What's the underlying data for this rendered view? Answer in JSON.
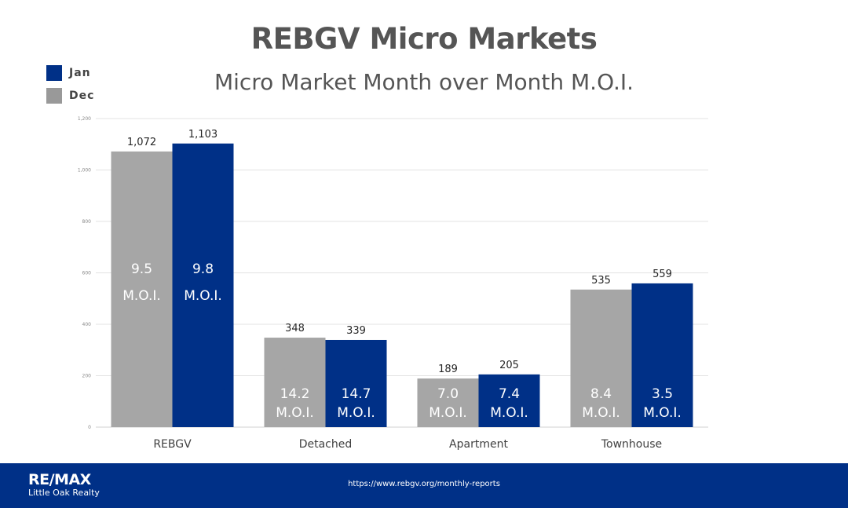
{
  "header": {
    "title": "REBGV Micro Markets",
    "subtitle": "Micro Market Month over Month M.O.I."
  },
  "legend": {
    "items": [
      {
        "label": "Jan",
        "color": "#003087"
      },
      {
        "label": "Dec",
        "color": "#999999"
      }
    ]
  },
  "footer": {
    "logo_main": "RE/MAX",
    "logo_sub": "Little Oak Realty",
    "url": "https://www.rebgv.org/monthly-reports",
    "color": "#003087"
  },
  "chart_data": {
    "type": "bar",
    "categories": [
      "REBGV",
      "Detached",
      "Apartment",
      "Townhouse"
    ],
    "series": [
      {
        "name": "Dec",
        "color": "#A6A6A6",
        "values": [
          1072,
          348,
          189,
          535
        ],
        "labels": [
          "1,072",
          "348",
          "189",
          "535"
        ],
        "moi": [
          "9.5",
          "14.2",
          "7.0",
          "8.4"
        ]
      },
      {
        "name": "Jan",
        "color": "#003087",
        "values": [
          1103,
          339,
          205,
          559
        ],
        "labels": [
          "1,103",
          "339",
          "205",
          "559"
        ],
        "moi": [
          "9.8",
          "14.7",
          "7.4",
          "3.5"
        ]
      }
    ],
    "moi_unit": "M.O.I.",
    "ylim": [
      0,
      1200
    ],
    "yticks": [
      0,
      200,
      400,
      600,
      800,
      1000,
      1200
    ],
    "ytick_labels": [
      "0",
      "200",
      "400",
      "600",
      "800",
      "1,000",
      "1,200"
    ],
    "grid": true
  }
}
